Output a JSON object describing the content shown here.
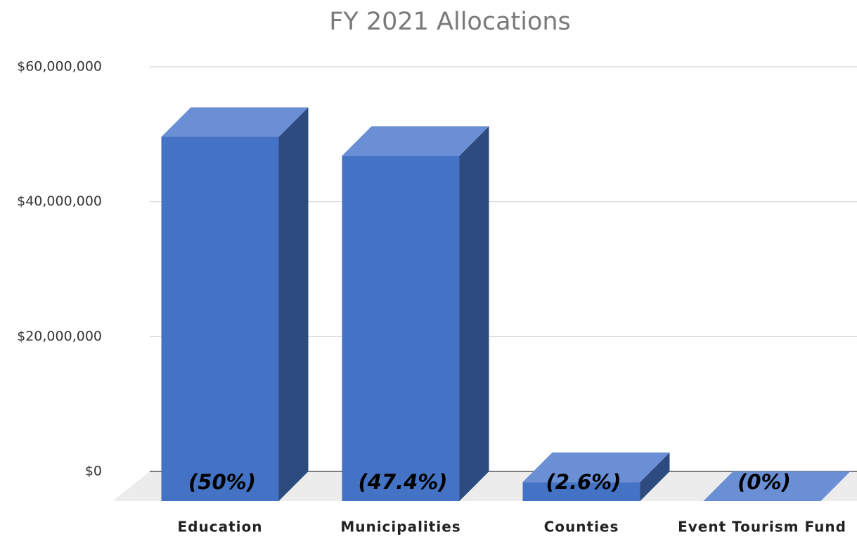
{
  "chart_data": {
    "type": "bar3d",
    "title": "FY 2021 Allocations",
    "categories": [
      "Education",
      "Municipalities",
      "Counties",
      "Event Tourism Fund"
    ],
    "values": [
      54000000,
      51200000,
      2800000,
      0
    ],
    "bar_labels": [
      "(50%)",
      "(47.4%)",
      "(2.6%)",
      "(0%)"
    ],
    "color": "#4472c4",
    "ylim": [
      0,
      60000000
    ],
    "yticks": [
      {
        "value": 0,
        "label": "$0"
      },
      {
        "value": 20000000,
        "label": "$20,000,000"
      },
      {
        "value": 40000000,
        "label": "$40,000,000"
      },
      {
        "value": 60000000,
        "label": "$60,000,000"
      }
    ],
    "grid": true
  }
}
